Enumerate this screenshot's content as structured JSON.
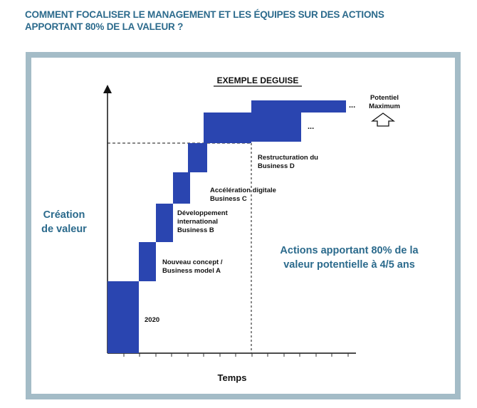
{
  "headline": {
    "line1": "COMMENT FOCALISER LE MANAGEMENT ET LES ÉQUIPES SUR DES ACTIONS",
    "line2": "APPORTANT 80% DE LA VALEUR ?"
  },
  "diagram": {
    "title": "EXEMPLE DEGUISE",
    "y_axis_label": {
      "line1": "Création",
      "line2": "de valeur"
    },
    "x_axis_label": "Temps",
    "steps": [
      {
        "line1": "2020",
        "line2": ""
      },
      {
        "line1": "Nouveau concept /",
        "line2": "Business model A"
      },
      {
        "line1": "Développement",
        "line2": "international",
        "line3": "Business B"
      },
      {
        "line1": "Accélération digitale",
        "line2": "Business C"
      },
      {
        "line1": "Restructuration du",
        "line2": "Business D"
      }
    ],
    "ellipsis": "...",
    "potential": {
      "line1": "Potentiel",
      "line2": "Maximum"
    },
    "annotation": {
      "line1": "Actions apportant 80% de la",
      "line2": "valeur potentielle à 4/5 ans"
    },
    "colors": {
      "bar": "#2a45b0",
      "accent_text": "#2b6a8c",
      "frame": "#a4bcc7"
    }
  }
}
